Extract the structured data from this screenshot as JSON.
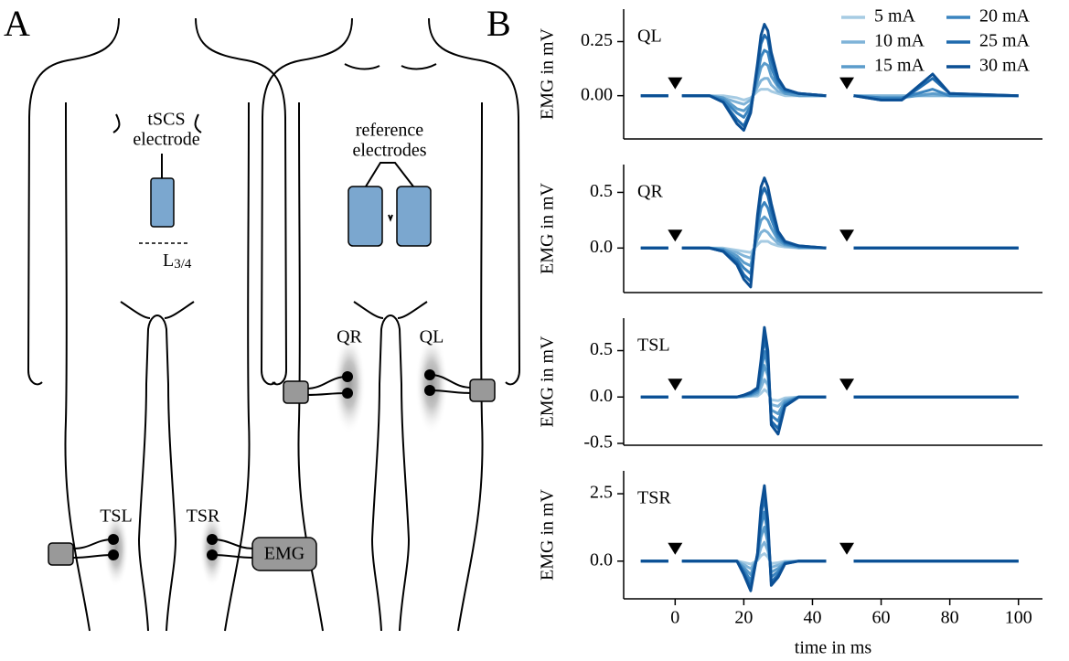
{
  "diagram": {
    "panel_label": "A",
    "tscs": [
      "tSCS",
      "electrode"
    ],
    "level": {
      "label": "L",
      "sub": "3/4"
    },
    "reference": [
      "reference",
      "electrodes"
    ],
    "muscles": [
      "QR",
      "QL",
      "TSL",
      "TSR"
    ],
    "amplifier": "EMG"
  },
  "panel_label_b": "B",
  "chart_data": [
    {
      "type": "line",
      "label": "QL",
      "ylabel": "EMG in mV",
      "legend": "upper right",
      "xlim": [
        -15,
        107
      ],
      "ylim": [
        -0.2,
        0.4
      ],
      "yticks": [
        {
          "value": 0,
          "label": "0.00"
        },
        {
          "value": 0.25,
          "label": "0.25"
        }
      ],
      "markers": [
        0,
        50
      ],
      "x": [
        -10,
        -2,
        0,
        2,
        10,
        14,
        18,
        20,
        22,
        24,
        25,
        26,
        27,
        28,
        30,
        32,
        36,
        44,
        50,
        52,
        60,
        66,
        75,
        80,
        100
      ],
      "series": [
        {
          "name": "5 mA",
          "color": "#a6cbe3",
          "values": [
            0,
            0,
            null,
            0,
            0,
            0,
            -0.01,
            -0.02,
            -0.01,
            0.02,
            0.03,
            0.03,
            0.03,
            0.02,
            0.01,
            0,
            0,
            0,
            null,
            0,
            0,
            0,
            0,
            0,
            0
          ]
        },
        {
          "name": "10 mA",
          "color": "#7fb3d8",
          "values": [
            0,
            0,
            null,
            0,
            0,
            -0.01,
            -0.03,
            -0.04,
            -0.02,
            0.04,
            0.07,
            0.08,
            0.08,
            0.05,
            0.02,
            0.01,
            0,
            0,
            null,
            0,
            0,
            0,
            0,
            0,
            0
          ]
        },
        {
          "name": "15 mA",
          "color": "#5b9ccb",
          "values": [
            0,
            0,
            null,
            0,
            0,
            -0.01,
            -0.06,
            -0.07,
            -0.04,
            0.07,
            0.13,
            0.15,
            0.14,
            0.09,
            0.04,
            0.01,
            0,
            0,
            null,
            0,
            -0.01,
            -0.01,
            0.01,
            0,
            0
          ]
        },
        {
          "name": "20 mA",
          "color": "#3a84bf",
          "values": [
            0,
            0,
            null,
            0,
            0,
            -0.02,
            -0.08,
            -0.1,
            -0.05,
            0.1,
            0.18,
            0.21,
            0.2,
            0.13,
            0.05,
            0.02,
            0.01,
            0,
            null,
            0,
            -0.01,
            -0.01,
            0.03,
            0,
            0
          ]
        },
        {
          "name": "25 mA",
          "color": "#1f6aad",
          "values": [
            0,
            0,
            null,
            0,
            0,
            -0.03,
            -0.11,
            -0.14,
            -0.07,
            0.13,
            0.24,
            0.28,
            0.26,
            0.17,
            0.07,
            0.03,
            0.01,
            0,
            null,
            0,
            -0.02,
            -0.02,
            0.08,
            0.01,
            0
          ]
        },
        {
          "name": "30 mA",
          "color": "#0b4f94",
          "values": [
            0,
            0,
            null,
            0,
            0,
            -0.03,
            -0.13,
            -0.16,
            -0.08,
            0.15,
            0.28,
            0.33,
            0.3,
            0.2,
            0.08,
            0.03,
            0.01,
            0,
            null,
            0,
            -0.02,
            -0.02,
            0.1,
            0.01,
            0
          ]
        }
      ]
    },
    {
      "type": "line",
      "label": "QR",
      "ylabel": "EMG in mV",
      "xlim": [
        -15,
        107
      ],
      "ylim": [
        -0.4,
        0.75
      ],
      "yticks": [
        {
          "value": 0,
          "label": "0.0"
        },
        {
          "value": 0.5,
          "label": "0.5"
        }
      ],
      "markers": [
        0,
        50
      ],
      "x": [
        -10,
        -2,
        0,
        2,
        10,
        14,
        18,
        20,
        22,
        24,
        25,
        26,
        27,
        28,
        30,
        32,
        36,
        44,
        50,
        52,
        60,
        66,
        75,
        80,
        100
      ],
      "series": [
        {
          "name": "5 mA",
          "color": "#a6cbe3",
          "values": [
            0,
            0,
            null,
            0,
            0,
            0,
            -0.02,
            -0.03,
            -0.04,
            0.03,
            0.06,
            0.06,
            0.06,
            0.04,
            0.02,
            0.01,
            0,
            0,
            null,
            0,
            0,
            0,
            0,
            0,
            0
          ]
        },
        {
          "name": "10 mA",
          "color": "#7fb3d8",
          "values": [
            0,
            0,
            null,
            0,
            0,
            -0.01,
            -0.04,
            -0.07,
            -0.09,
            0.08,
            0.14,
            0.16,
            0.14,
            0.1,
            0.04,
            0.02,
            0,
            0,
            null,
            0,
            0,
            0,
            0,
            0,
            0
          ]
        },
        {
          "name": "15 mA",
          "color": "#5b9ccb",
          "values": [
            0,
            0,
            null,
            0,
            0,
            -0.01,
            -0.07,
            -0.13,
            -0.16,
            0.14,
            0.25,
            0.28,
            0.25,
            0.18,
            0.07,
            0.03,
            0.01,
            0,
            null,
            0,
            0,
            0,
            0,
            0,
            0
          ]
        },
        {
          "name": "20 mA",
          "color": "#3a84bf",
          "values": [
            0,
            0,
            null,
            0,
            0,
            -0.02,
            -0.1,
            -0.18,
            -0.23,
            0.2,
            0.36,
            0.41,
            0.36,
            0.26,
            0.1,
            0.04,
            0.01,
            0,
            null,
            0,
            0,
            0,
            0,
            0,
            0
          ]
        },
        {
          "name": "25 mA",
          "color": "#1f6aad",
          "values": [
            0,
            0,
            null,
            0,
            0,
            -0.03,
            -0.13,
            -0.24,
            -0.3,
            0.26,
            0.47,
            0.54,
            0.47,
            0.34,
            0.13,
            0.05,
            0.02,
            0,
            null,
            0,
            0,
            0,
            0,
            0,
            0
          ]
        },
        {
          "name": "30 mA",
          "color": "#0b4f94",
          "values": [
            0,
            0,
            null,
            0,
            0,
            -0.03,
            -0.15,
            -0.28,
            -0.35,
            0.3,
            0.55,
            0.63,
            0.55,
            0.4,
            0.15,
            0.06,
            0.02,
            0,
            null,
            0,
            0,
            0,
            0,
            0,
            0
          ]
        }
      ]
    },
    {
      "type": "line",
      "label": "TSL",
      "ylabel": "EMG in mV",
      "xlim": [
        -15,
        107
      ],
      "ylim": [
        -0.52,
        0.85
      ],
      "yticks": [
        -0.5,
        {
          "value": 0,
          "label": "0.0"
        },
        {
          "value": 0.5,
          "label": "0.5"
        }
      ],
      "markers": [
        0,
        50
      ],
      "x": [
        -10,
        -2,
        0,
        2,
        10,
        14,
        18,
        20,
        22,
        24,
        25,
        26,
        27,
        28,
        30,
        32,
        36,
        44,
        50,
        52,
        60,
        66,
        75,
        80,
        100
      ],
      "series": [
        {
          "name": "5 mA",
          "color": "#a6cbe3",
          "values": [
            0,
            0,
            null,
            0,
            0,
            0,
            0,
            0,
            0.01,
            0.01,
            0.04,
            0.08,
            0.05,
            -0.03,
            -0.04,
            -0.01,
            0,
            0,
            null,
            0,
            0,
            0,
            0,
            0,
            0
          ]
        },
        {
          "name": "10 mA",
          "color": "#7fb3d8",
          "values": [
            0,
            0,
            null,
            0,
            0,
            0,
            0,
            0.01,
            0.01,
            0.03,
            0.1,
            0.19,
            0.13,
            -0.08,
            -0.1,
            -0.03,
            0,
            0,
            null,
            0,
            0,
            0,
            0,
            0,
            0
          ]
        },
        {
          "name": "15 mA",
          "color": "#5b9ccb",
          "values": [
            0,
            0,
            null,
            0,
            0,
            0,
            0,
            0.01,
            0.02,
            0.05,
            0.18,
            0.34,
            0.23,
            -0.14,
            -0.18,
            -0.05,
            0,
            0,
            null,
            0,
            0,
            0,
            0,
            0,
            0
          ]
        },
        {
          "name": "20 mA",
          "color": "#3a84bf",
          "values": [
            0,
            0,
            null,
            0,
            0,
            0,
            0,
            0.01,
            0.03,
            0.07,
            0.26,
            0.49,
            0.33,
            -0.2,
            -0.26,
            -0.07,
            0,
            0,
            null,
            0,
            0,
            0,
            0,
            0,
            0
          ]
        },
        {
          "name": "25 mA",
          "color": "#1f6aad",
          "values": [
            0,
            0,
            null,
            0,
            0,
            0,
            0,
            0.02,
            0.04,
            0.09,
            0.34,
            0.64,
            0.43,
            -0.26,
            -0.34,
            -0.09,
            0,
            0,
            null,
            0,
            0,
            0,
            0,
            0,
            0
          ]
        },
        {
          "name": "30 mA",
          "color": "#0b4f94",
          "values": [
            0,
            0,
            null,
            0,
            0,
            0,
            0,
            0.02,
            0.05,
            0.1,
            0.4,
            0.75,
            0.5,
            -0.3,
            -0.4,
            -0.1,
            0,
            0,
            null,
            0,
            0,
            0,
            0,
            0,
            0
          ]
        }
      ]
    },
    {
      "type": "line",
      "label": "TSR",
      "ylabel": "EMG in mV",
      "xlabel": "time in ms",
      "xlim": [
        -15,
        107
      ],
      "xticks": [
        0,
        20,
        40,
        60,
        80,
        100
      ],
      "ylim": [
        -1.4,
        3.35
      ],
      "yticks": [
        {
          "value": 0,
          "label": "0.0"
        },
        2.5
      ],
      "markers": [
        0,
        50
      ],
      "x": [
        -10,
        -2,
        0,
        2,
        10,
        14,
        18,
        20,
        22,
        24,
        25,
        26,
        27,
        28,
        30,
        32,
        36,
        44,
        50,
        52,
        60,
        66,
        75,
        80,
        100
      ],
      "series": [
        {
          "name": "5 mA",
          "color": "#a6cbe3",
          "values": [
            0,
            0,
            null,
            0,
            0,
            0,
            0,
            -0.05,
            -0.11,
            0.03,
            0.2,
            0.28,
            0.15,
            -0.09,
            -0.06,
            -0.01,
            0,
            0,
            null,
            0,
            0,
            0,
            0,
            0,
            0
          ]
        },
        {
          "name": "10 mA",
          "color": "#7fb3d8",
          "values": [
            0,
            0,
            null,
            0,
            0,
            0,
            0,
            -0.13,
            -0.28,
            0.08,
            0.5,
            0.7,
            0.38,
            -0.23,
            -0.15,
            -0.03,
            0,
            0,
            null,
            0,
            0,
            0,
            0,
            0,
            0
          ]
        },
        {
          "name": "15 mA",
          "color": "#5b9ccb",
          "values": [
            0,
            0,
            null,
            0,
            0,
            0,
            0,
            -0.23,
            -0.5,
            0.14,
            0.9,
            1.26,
            0.68,
            -0.41,
            -0.27,
            -0.05,
            0,
            0,
            null,
            0,
            0,
            0,
            0,
            0,
            0
          ]
        },
        {
          "name": "20 mA",
          "color": "#3a84bf",
          "values": [
            0,
            0,
            null,
            0,
            0,
            0,
            0,
            -0.33,
            -0.72,
            0.2,
            1.3,
            1.82,
            0.98,
            -0.59,
            -0.39,
            -0.07,
            0,
            0,
            null,
            0,
            0,
            0,
            0,
            0,
            0
          ]
        },
        {
          "name": "25 mA",
          "color": "#1f6aad",
          "values": [
            0,
            0,
            null,
            0,
            0,
            0,
            0,
            -0.43,
            -0.94,
            0.26,
            1.7,
            2.38,
            1.28,
            -0.77,
            -0.51,
            -0.09,
            0,
            0,
            null,
            0,
            0,
            0,
            0,
            0,
            0
          ]
        },
        {
          "name": "30 mA",
          "color": "#0b4f94",
          "values": [
            0,
            0,
            null,
            0,
            0,
            0,
            0,
            -0.5,
            -1.1,
            0.3,
            2.0,
            2.8,
            1.5,
            -0.9,
            -0.6,
            -0.1,
            0,
            0,
            null,
            0,
            0,
            0,
            0,
            0,
            0
          ]
        }
      ]
    }
  ]
}
